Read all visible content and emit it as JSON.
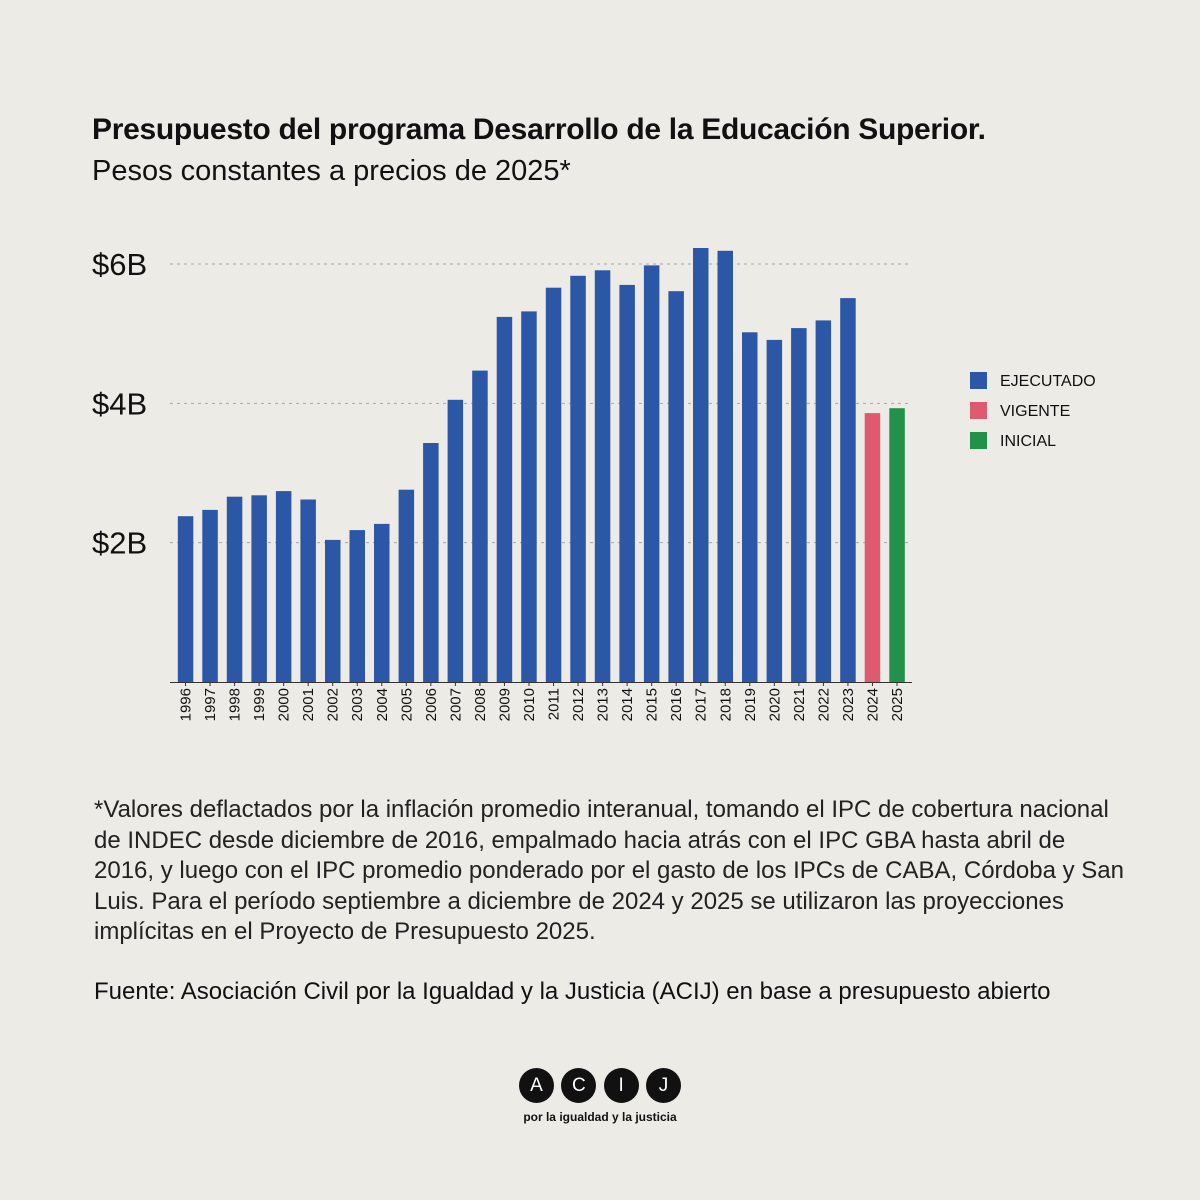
{
  "chart_data": {
    "type": "bar",
    "title": "Presupuesto del programa Desarrollo de la Educación Superior.",
    "subtitle": "Pesos constantes a precios de 2025*",
    "categories": [
      "1996",
      "1997",
      "1998",
      "1999",
      "2000",
      "2001",
      "2002",
      "2003",
      "2004",
      "2005",
      "2006",
      "2007",
      "2008",
      "2009",
      "2010",
      "2011",
      "2012",
      "2013",
      "2014",
      "2015",
      "2016",
      "2017",
      "2018",
      "2019",
      "2020",
      "2021",
      "2022",
      "2023",
      "2024",
      "2025"
    ],
    "series": [
      {
        "name": "EJECUTADO",
        "color": "#2b57a6",
        "values": [
          2.38,
          2.47,
          2.66,
          2.68,
          2.74,
          2.62,
          2.04,
          2.18,
          2.27,
          2.76,
          3.43,
          4.05,
          4.47,
          5.24,
          5.32,
          5.66,
          5.83,
          5.91,
          5.7,
          5.98,
          5.61,
          6.23,
          6.19,
          5.02,
          4.91,
          5.08,
          5.19,
          5.51,
          null,
          null
        ]
      },
      {
        "name": "VIGENTE",
        "color": "#de5a6e",
        "values": [
          null,
          null,
          null,
          null,
          null,
          null,
          null,
          null,
          null,
          null,
          null,
          null,
          null,
          null,
          null,
          null,
          null,
          null,
          null,
          null,
          null,
          null,
          null,
          null,
          null,
          null,
          null,
          null,
          3.86,
          null
        ]
      },
      {
        "name": "INICIAL",
        "color": "#22914a",
        "values": [
          null,
          null,
          null,
          null,
          null,
          null,
          null,
          null,
          null,
          null,
          null,
          null,
          null,
          null,
          null,
          null,
          null,
          null,
          null,
          null,
          null,
          null,
          null,
          null,
          null,
          null,
          null,
          null,
          null,
          3.93
        ]
      }
    ],
    "ylim": [
      0,
      6.3
    ],
    "yticks": [
      2,
      4,
      6
    ],
    "ytick_labels": [
      "$2B",
      "$4B",
      "$6B"
    ],
    "grid": true,
    "legend_position": "right"
  },
  "footnote": "*Valores deflactados por la inflación promedio interanual, tomando el IPC de cobertura nacional de INDEC desde diciembre de 2016, empalmado hacia atrás con el IPC GBA hasta abril de 2016, y luego con el IPC promedio ponderado por el gasto de los IPCs de CABA, Córdoba y San Luis. Para el período septiembre a diciembre de 2024 y 2025 se utilizaron las proyecciones implícitas en el Proyecto de Presupuesto 2025.",
  "source": "Fuente: Asociación Civil por la Igualdad y la Justicia (ACIJ) en base a presupuesto abierto",
  "logo": {
    "letters": [
      "A",
      "C",
      "I",
      "J"
    ],
    "tagline": "por la igualdad y la justicia"
  }
}
